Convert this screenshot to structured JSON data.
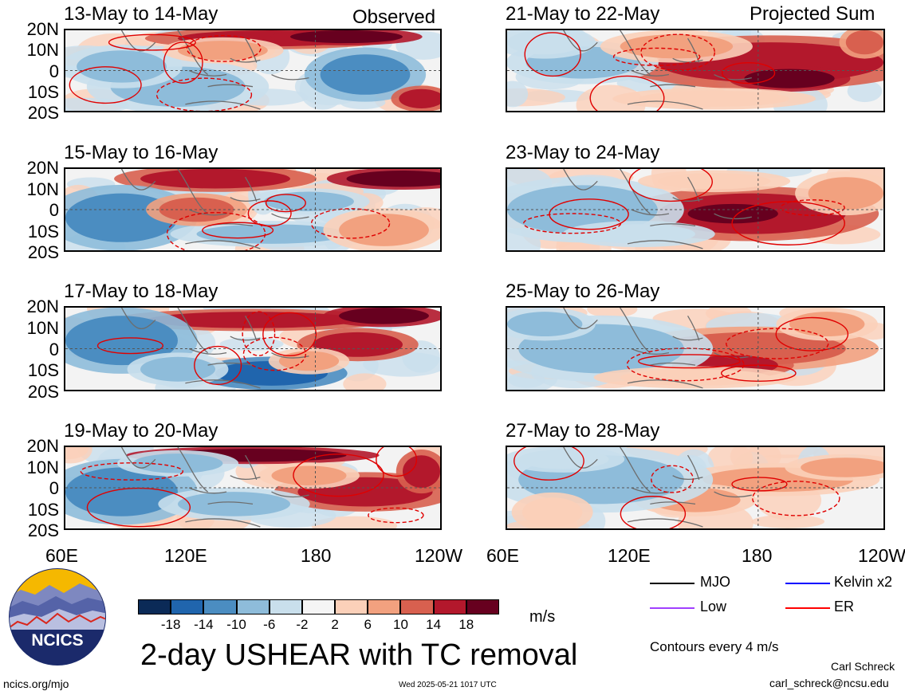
{
  "panels_left": [
    {
      "date_range": "13-May to 14-May",
      "corner_label": "Observed"
    },
    {
      "date_range": "15-May to 16-May"
    },
    {
      "date_range": "17-May to 18-May"
    },
    {
      "date_range": "19-May to 20-May"
    }
  ],
  "panels_right": [
    {
      "date_range": "21-May to 22-May",
      "corner_label": "Projected Sum"
    },
    {
      "date_range": "23-May to 24-May"
    },
    {
      "date_range": "25-May to 26-May"
    },
    {
      "date_range": "27-May to 28-May"
    }
  ],
  "lat_labels": [
    "20N",
    "10N",
    "0",
    "10S",
    "20S"
  ],
  "lon_labels": [
    "60E",
    "120E",
    "180",
    "120W"
  ],
  "colorbar": {
    "colors": [
      "#0b2a57",
      "#2065ad",
      "#4b8dc1",
      "#8ebcda",
      "#c9dfec",
      "#f5f5f5",
      "#fbd0b9",
      "#f2a17f",
      "#d8604f",
      "#b3182c",
      "#67001f"
    ],
    "labels": [
      "-18",
      "-14",
      "-10",
      "-6",
      "-2",
      "2",
      "6",
      "10",
      "14",
      "18"
    ],
    "units": "m/s"
  },
  "legend": [
    {
      "name": "MJO",
      "color": "#000000"
    },
    {
      "name": "Kelvin x2",
      "color": "#0000ff"
    },
    {
      "name": "Low",
      "color": "#a040ff"
    },
    {
      "name": "ER",
      "color": "#ff0000"
    }
  ],
  "contour_note": "Contours every 4 m/s",
  "main_title": "2-day USHEAR with TC removal",
  "logo_text": "NCICS",
  "footer": {
    "url": "ncics.org/mjo",
    "timestamp": "Wed 2025-05-21 1017 UTC",
    "author": "Carl Schreck",
    "email": "carl_schreck@ncsu.edu"
  }
}
